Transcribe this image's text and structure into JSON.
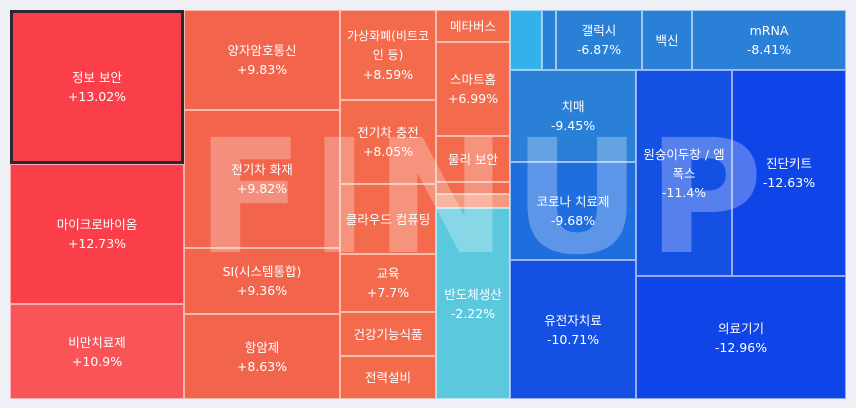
{
  "watermark": "FINUP",
  "colors": {
    "up_strong": "#fa3f4a",
    "up_mid": "#f2654c",
    "down_light": "#5bc8de",
    "down_mid": "#2a7fd6",
    "down_strong": "#0f44e8"
  },
  "tiles": {
    "t1": {
      "name": "정보 보안",
      "pct": "+13.02%"
    },
    "t2": {
      "name": "마이크로바이옴",
      "pct": "+12.73%"
    },
    "t3": {
      "name": "비만치료제",
      "pct": "+10.9%"
    },
    "t4": {
      "name": "양자암호통신",
      "pct": "+9.83%"
    },
    "t5": {
      "name": "전기차 화재",
      "pct": "+9.82%"
    },
    "t6": {
      "name": "SI(시스템통합)",
      "pct": "+9.36%"
    },
    "t7": {
      "name": "항암제",
      "pct": "+8.63%"
    },
    "t8": {
      "name": "가상화폐(비트코인 등)",
      "pct": "+8.59%"
    },
    "t9": {
      "name": "전기차 충전",
      "pct": "+8.05%"
    },
    "t10": {
      "name": "클라우드 컴퓨팅",
      "pct": ""
    },
    "t11": {
      "name": "교육",
      "pct": "+7.7%"
    },
    "t12": {
      "name": "건강기능식품",
      "pct": ""
    },
    "t13": {
      "name": "전력설비",
      "pct": ""
    },
    "t14": {
      "name": "메타버스",
      "pct": ""
    },
    "t15": {
      "name": "스마트홈",
      "pct": "+6.99%"
    },
    "t16": {
      "name": "물리 보안",
      "pct": ""
    },
    "t17": {
      "name": "반도체생산",
      "pct": "-2.22%"
    },
    "t18": {
      "name": "갤럭시",
      "pct": "-6.87%"
    },
    "t19": {
      "name": "백신",
      "pct": ""
    },
    "t20": {
      "name": "mRNA",
      "pct": "-8.41%"
    },
    "t21": {
      "name": "치매",
      "pct": "-9.45%"
    },
    "t22": {
      "name": "코로나 치료제",
      "pct": "-9.68%"
    },
    "t23": {
      "name": "원숭이두창 / 엠폭스",
      "pct": "-11.4%"
    },
    "t24": {
      "name": "진단키트",
      "pct": "-12.63%"
    },
    "t25": {
      "name": "유전자치료",
      "pct": "-10.71%"
    },
    "t26": {
      "name": "의료기기",
      "pct": "-12.96%"
    }
  }
}
